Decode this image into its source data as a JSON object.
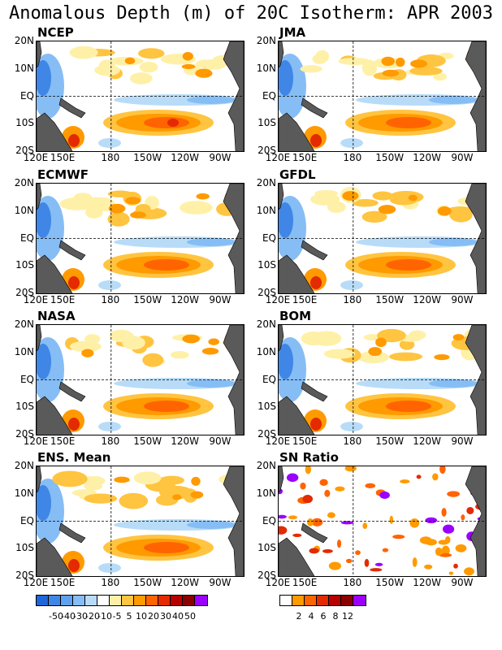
{
  "title": "Anomalous Depth (m) of 20C Isotherm: APR 2003",
  "lat_ticks": [
    "20N",
    "10N",
    "EQ",
    "10S",
    "20S"
  ],
  "lon_ticks": [
    "120E",
    "150E",
    "180",
    "150W",
    "120W",
    "90W"
  ],
  "panels": [
    {
      "name": "NCEP"
    },
    {
      "name": "JMA"
    },
    {
      "name": "ECMWF"
    },
    {
      "name": "GFDL"
    },
    {
      "name": "NASA"
    },
    {
      "name": "BOM"
    },
    {
      "name": "ENS. Mean"
    },
    {
      "name": "SN Ratio"
    }
  ],
  "colorbar_anomaly": {
    "colors": [
      "#1f66d9",
      "#3f86e6",
      "#5ea1ef",
      "#86bdf5",
      "#b8dcf8",
      "#ffffff",
      "#fff0a8",
      "#ffc440",
      "#ff9a00",
      "#ff6400",
      "#e32a00",
      "#b80000",
      "#8b0000",
      "#9b00ff"
    ],
    "labels": [
      "-50",
      "-40",
      "-30",
      "-20",
      "-10",
      "-5",
      "5",
      "10",
      "20",
      "30",
      "40",
      "50"
    ]
  },
  "colorbar_snr": {
    "colors": [
      "#ffffff",
      "#ff9a00",
      "#ff6400",
      "#e32a00",
      "#b80000",
      "#8b0000",
      "#9b00ff"
    ],
    "labels": [
      "2",
      "4",
      "6",
      "8",
      "12"
    ]
  }
}
